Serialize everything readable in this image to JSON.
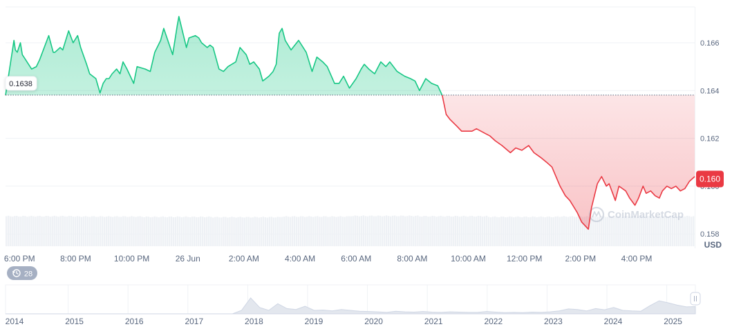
{
  "chart_data": {
    "type": "area",
    "currency_label": "USD",
    "watermark": "CoinMarketCap",
    "reference_value": 0.16381,
    "reference_label": "0.1638",
    "current_value": 0.1603,
    "current_label": "0.160",
    "ylim": [
      0.1574,
      0.1675
    ],
    "y_ticks": [
      0.158,
      0.16,
      0.162,
      0.164,
      0.166
    ],
    "y_tick_labels": [
      "0.158",
      "0.160",
      "0.162",
      "0.164",
      "0.166"
    ],
    "x_ticks": [
      {
        "t": 2,
        "label": "6:00 PM"
      },
      {
        "t": 4,
        "label": "8:00 PM"
      },
      {
        "t": 6,
        "label": "10:00 PM"
      },
      {
        "t": 8,
        "label": "26 Jun"
      },
      {
        "t": 10,
        "label": "2:00 AM"
      },
      {
        "t": 12,
        "label": "4:00 AM"
      },
      {
        "t": 14,
        "label": "6:00 AM"
      },
      {
        "t": 16,
        "label": "8:00 AM"
      },
      {
        "t": 18,
        "label": "10:00 AM"
      },
      {
        "t": 20,
        "label": "12:00 PM"
      },
      {
        "t": 22,
        "label": "2:00 PM"
      },
      {
        "t": 24,
        "label": "4:00 PM"
      }
    ],
    "x_range": [
      1.5,
      26.07
    ],
    "positive_color": "#16c784",
    "negative_color": "#ea3943",
    "series": [
      {
        "t": [
          1.5,
          1.8,
          1.85,
          1.92,
          2.03,
          2.1,
          2.21,
          2.43,
          2.6,
          2.72,
          3.04,
          3.2,
          3.26,
          3.45,
          3.54,
          3.75,
          3.91,
          4.07,
          4.18,
          4.39,
          4.5,
          4.72,
          4.87,
          4.98,
          5.09,
          5.19,
          5.3,
          5.46,
          5.58,
          5.69,
          5.83,
          6.07,
          6.19,
          6.48,
          6.66,
          6.82,
          7.03,
          7.14,
          7.46,
          7.62,
          7.68,
          7.95,
          8.04,
          8.27,
          8.39,
          8.49,
          8.69,
          8.79,
          8.9,
          9.11,
          9.27,
          9.43,
          9.71,
          9.86,
          10.08,
          10.21,
          10.35,
          10.55,
          10.67,
          10.89,
          11.04,
          11.15,
          11.26,
          11.36,
          11.47,
          11.68,
          11.95,
          12.22,
          12.43,
          12.6,
          12.81,
          12.97,
          13.23,
          13.39,
          13.55,
          13.76,
          14.0,
          14.18,
          14.29,
          14.45,
          14.66,
          14.88,
          15.06,
          15.2,
          15.46,
          15.73,
          15.94,
          16.1,
          16.26,
          16.48,
          16.69,
          16.91,
          17.07,
          17.21,
          17.34,
          17.6,
          17.76,
          18.13,
          18.29,
          18.61,
          18.77,
          18.96,
          19.2,
          19.5,
          19.69,
          19.91,
          20.15,
          20.34,
          20.58,
          20.79,
          20.98,
          21.27,
          21.46,
          21.62,
          21.88,
          22.04,
          22.28,
          22.39,
          22.6,
          22.75,
          22.92,
          23.02,
          23.24,
          23.37,
          23.61,
          23.75,
          23.94,
          24.07,
          24.23,
          24.34,
          24.5,
          24.66,
          24.81,
          24.92,
          25.08,
          25.24,
          25.4,
          25.56,
          25.72,
          25.88,
          26.07
        ],
        "v": [
          0.1638,
          0.1661,
          0.1657,
          0.1656,
          0.166,
          0.1655,
          0.1653,
          0.1649,
          0.165,
          0.1653,
          0.1663,
          0.1656,
          0.1656,
          0.1658,
          0.1657,
          0.1665,
          0.166,
          0.1663,
          0.1658,
          0.1651,
          0.1647,
          0.1645,
          0.1639,
          0.1643,
          0.1645,
          0.1645,
          0.1647,
          0.1649,
          0.1647,
          0.1652,
          0.1649,
          0.1643,
          0.165,
          0.1649,
          0.1648,
          0.1656,
          0.1661,
          0.1666,
          0.1655,
          0.1667,
          0.1671,
          0.1658,
          0.1662,
          0.1663,
          0.1662,
          0.166,
          0.1658,
          0.1659,
          0.1658,
          0.1649,
          0.1648,
          0.165,
          0.1652,
          0.1658,
          0.1655,
          0.1651,
          0.1652,
          0.1649,
          0.1644,
          0.1646,
          0.1648,
          0.1651,
          0.1664,
          0.1666,
          0.1661,
          0.1657,
          0.1661,
          0.1656,
          0.1648,
          0.1654,
          0.1652,
          0.165,
          0.1643,
          0.1643,
          0.1646,
          0.1641,
          0.1645,
          0.1649,
          0.1651,
          0.1649,
          0.1647,
          0.1652,
          0.165,
          0.1652,
          0.1648,
          0.1646,
          0.1645,
          0.1644,
          0.164,
          0.1645,
          0.1643,
          0.1642,
          0.1638,
          0.163,
          0.1628,
          0.1625,
          0.1623,
          0.1623,
          0.1624,
          0.1622,
          0.1621,
          0.1619,
          0.1617,
          0.1614,
          0.1616,
          0.1615,
          0.1617,
          0.1614,
          0.1612,
          0.161,
          0.1608,
          0.16,
          0.1596,
          0.1594,
          0.1589,
          0.1585,
          0.1582,
          0.1591,
          0.1601,
          0.1604,
          0.16,
          0.1601,
          0.1594,
          0.16,
          0.1598,
          0.1595,
          0.1592,
          0.1595,
          0.16,
          0.1597,
          0.1598,
          0.1596,
          0.1595,
          0.1598,
          0.16,
          0.1599,
          0.16,
          0.1598,
          0.1599,
          0.1602,
          0.1604
        ]
      }
    ],
    "volume_levels": [
      0.96,
      0.95,
      0.94,
      0.93,
      0.95,
      0.97,
      0.96,
      0.94,
      0.95,
      0.96
    ],
    "history_badge": {
      "count": "28",
      "icon": "history-icon"
    },
    "navigator": {
      "year_labels": [
        "2014",
        "2015",
        "2016",
        "2017",
        "2018",
        "2019",
        "2020",
        "2021",
        "2022",
        "2023",
        "2024",
        "2025"
      ],
      "series": [
        0,
        0,
        0,
        0,
        0,
        0,
        0,
        0,
        0,
        0,
        0,
        0,
        0,
        0,
        0,
        0,
        0,
        0,
        0,
        0,
        0,
        0,
        0,
        0,
        0,
        0,
        0.12,
        0.55,
        0.22,
        0.12,
        0.35,
        0.18,
        0.15,
        0.26,
        0.12,
        0.13,
        0.1,
        0.15,
        0.12,
        0.09,
        0.08,
        0.07,
        0.05,
        0.09,
        0.07,
        0.06,
        0.08,
        0.06,
        0.05,
        0.07,
        0.06,
        0.05,
        0.05,
        0.08,
        0.06,
        0.04,
        0.05,
        0.04,
        0.06,
        0.05,
        0.07,
        0.1,
        0.17,
        0.15,
        0.1,
        0.18,
        0.14,
        0.22,
        0.12,
        0.1,
        0.09,
        0.28,
        0.45,
        0.38,
        0.3,
        0.24,
        0.25
      ]
    }
  }
}
